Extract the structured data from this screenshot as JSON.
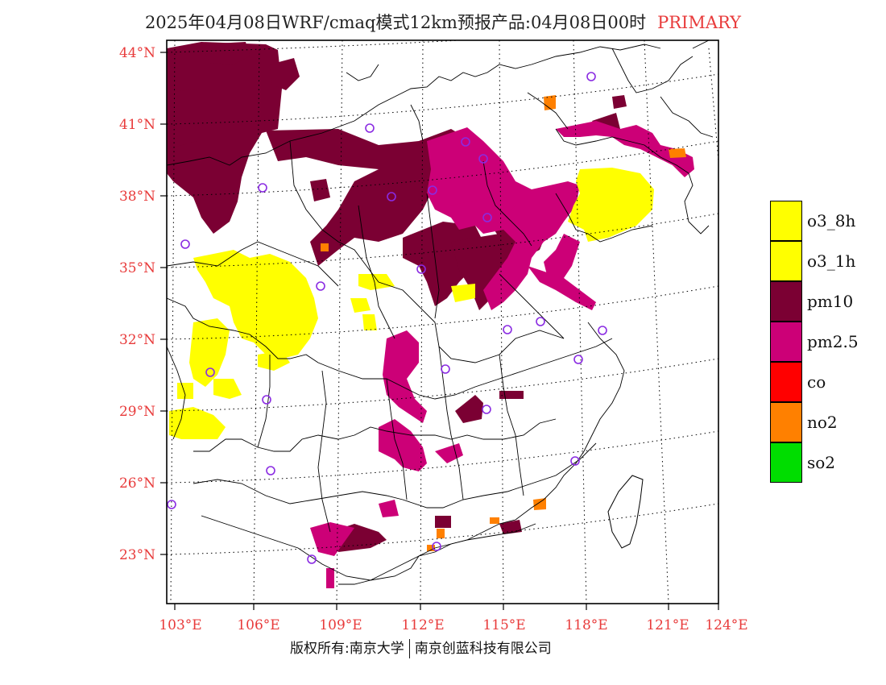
{
  "title": {
    "main": "2025年04月08日WRF/cmaq模式12km预报产品:04月08日00时",
    "tag": "PRIMARY"
  },
  "axes": {
    "lat_labels": [
      "44°N",
      "41°N",
      "38°N",
      "35°N",
      "32°N",
      "29°N",
      "26°N",
      "23°N"
    ],
    "lon_labels": [
      "103°E",
      "106°E",
      "109°E",
      "112°E",
      "115°E",
      "118°E",
      "121°E",
      "124°E"
    ]
  },
  "legend": [
    {
      "label": "o3_8h",
      "color": "#ffff00"
    },
    {
      "label": "o3_1h",
      "color": "#ffff00"
    },
    {
      "label": "pm10",
      "color": "#7b0033"
    },
    {
      "label": "pm2.5",
      "color": "#cc0077"
    },
    {
      "label": "co",
      "color": "#ff0000"
    },
    {
      "label": "no2",
      "color": "#ff8000"
    },
    {
      "label": "so2",
      "color": "#00dd00"
    }
  ],
  "colors": {
    "axis_label": "#e83b3b",
    "station_marker": "#8a2be2",
    "boundary": "#000000"
  },
  "footer": {
    "left": "版权所有:南京大学",
    "right": "南京创蓝科技有限公司"
  }
}
